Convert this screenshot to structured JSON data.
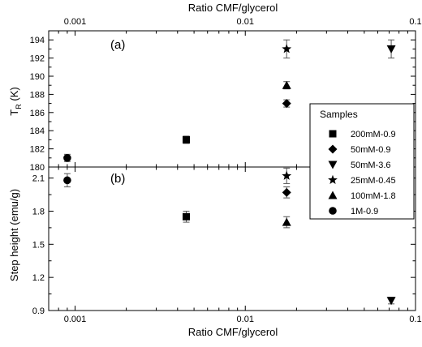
{
  "chart_data": {
    "type": "scatter",
    "x_scale": "log",
    "xlim": [
      0.0007,
      0.1
    ],
    "x_ticks": [
      0.001,
      0.01,
      0.1
    ],
    "x_tick_labels": [
      "0.001",
      "0.01",
      "0.1"
    ],
    "top_xlabel": "Ratio CMF/glycerol",
    "bottom_xlabel": "Ratio CMF/glycerol",
    "markers": {
      "200mM-0.9": "square",
      "50mM-0.9": "diamond",
      "50mM-3.6": "triangle-down",
      "25mM-0.45": "star",
      "100mM-1.8": "triangle-up",
      "1M-0.9": "circle"
    },
    "legend": {
      "title": "Samples",
      "placement": "right",
      "entries": [
        "200mM-0.9",
        "50mM-0.9",
        "50mM-3.6",
        "25mM-0.45",
        "100mM-1.8",
        "1M-0.9"
      ]
    },
    "panels": [
      {
        "tag": "(a)",
        "ylabel_main": "T",
        "ylabel_sub": "R",
        "ylabel_unit": " (K)",
        "ylim": [
          180,
          195
        ],
        "y_ticks": [
          180,
          182,
          184,
          186,
          188,
          190,
          192,
          194
        ],
        "y_tick_labels": [
          "180",
          "182",
          "184",
          "186",
          "188",
          "190",
          "192",
          "194"
        ],
        "points": [
          {
            "series": "1M-0.9",
            "x": 0.0009,
            "y": 181.0,
            "err": 0.4
          },
          {
            "series": "200mM-0.9",
            "x": 0.0045,
            "y": 183.0,
            "err": 0.4
          },
          {
            "series": "50mM-0.9",
            "x": 0.0175,
            "y": 187.0,
            "err": 0.4
          },
          {
            "series": "100mM-1.8",
            "x": 0.0175,
            "y": 189.0,
            "err": 0.4
          },
          {
            "series": "25mM-0.45",
            "x": 0.0175,
            "y": 193.0,
            "err": 1.0
          },
          {
            "series": "50mM-3.6",
            "x": 0.072,
            "y": 193.0,
            "err": 1.0
          }
        ]
      },
      {
        "tag": "(b)",
        "ylabel": "Step height (emu/g)",
        "ylim": [
          0.9,
          2.2
        ],
        "y_ticks": [
          0.9,
          1.2,
          1.5,
          1.8,
          2.1
        ],
        "y_tick_labels": [
          "0.9",
          "1.2",
          "1.5",
          "1.8",
          "2.1"
        ],
        "points": [
          {
            "series": "1M-0.9",
            "x": 0.0009,
            "y": 2.08,
            "err": 0.06
          },
          {
            "series": "200mM-0.9",
            "x": 0.0045,
            "y": 1.75,
            "err": 0.05
          },
          {
            "series": "50mM-0.9",
            "x": 0.0175,
            "y": 1.97,
            "err": 0.05
          },
          {
            "series": "25mM-0.45",
            "x": 0.0175,
            "y": 2.12,
            "err": 0.07
          },
          {
            "series": "100mM-1.8",
            "x": 0.0175,
            "y": 1.7,
            "err": 0.05
          },
          {
            "series": "50mM-3.6",
            "x": 0.072,
            "y": 0.99,
            "err": 0.03
          }
        ]
      }
    ]
  }
}
